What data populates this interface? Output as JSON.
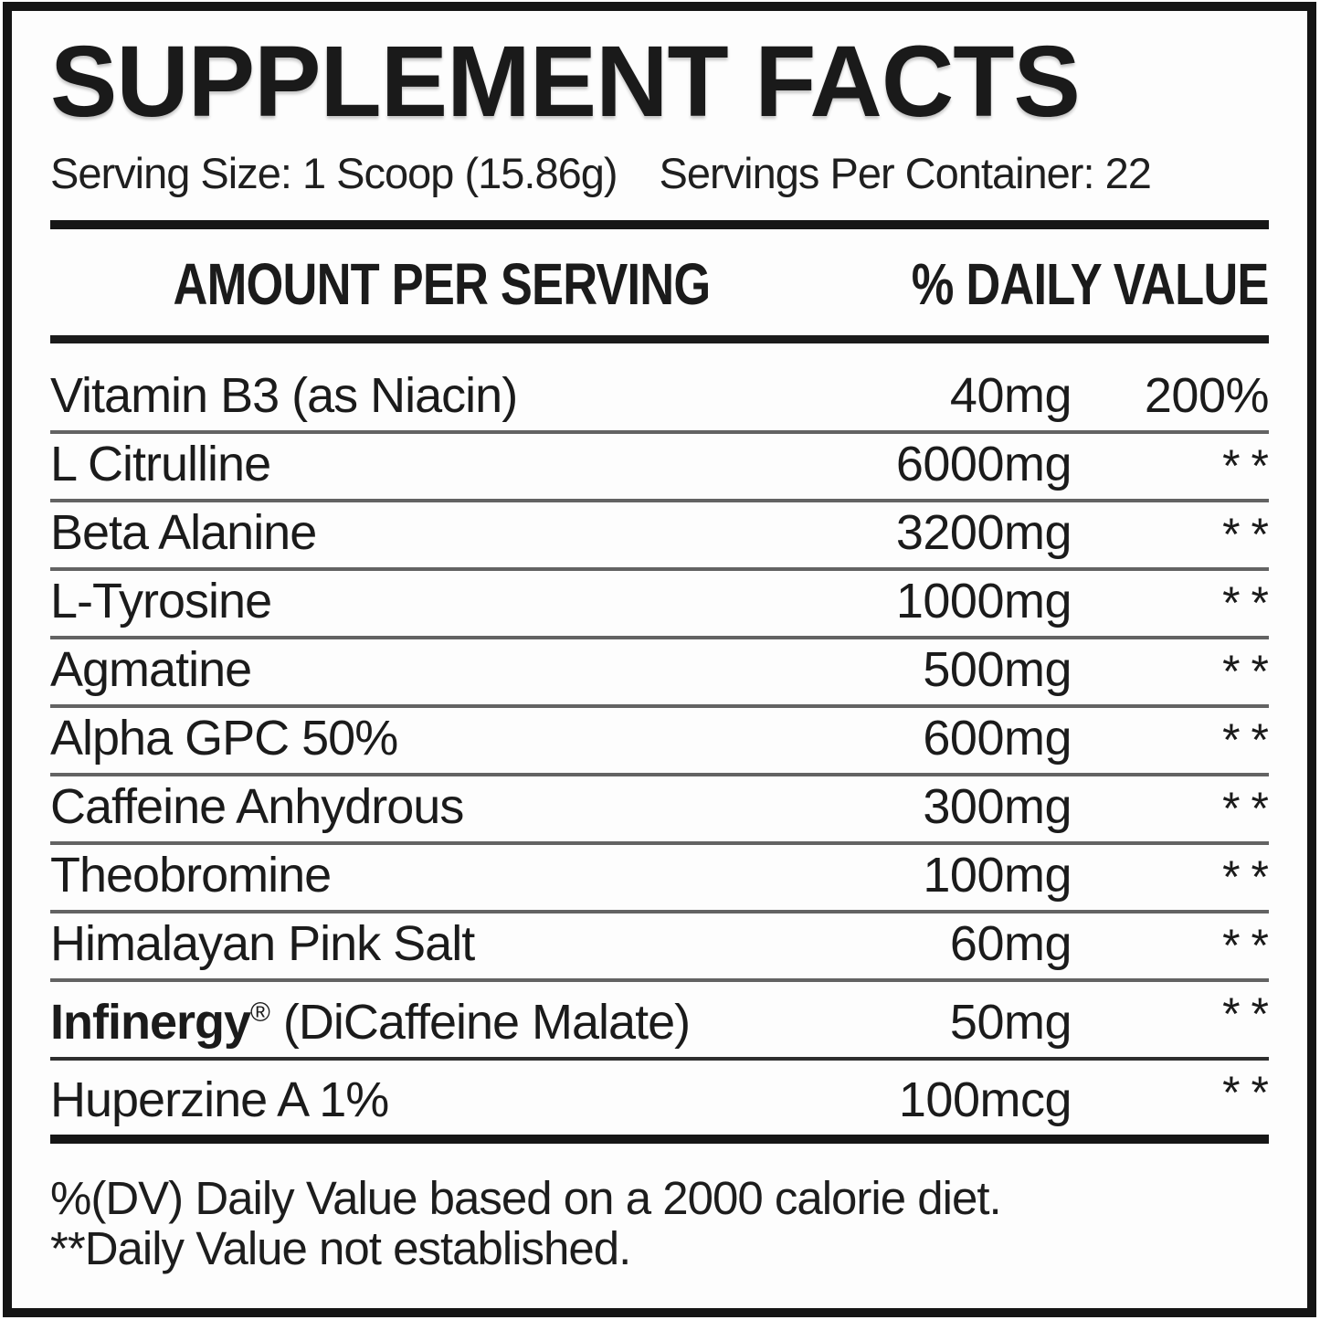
{
  "panel": {
    "title": "SUPPLEMENT FACTS",
    "serving": {
      "size": "Serving Size: 1 Scoop (15.86g)",
      "per_container": "Servings Per Container: 22"
    },
    "columns": {
      "amount": "AMOUNT PER SERVING",
      "daily_value": "% DAILY VALUE"
    },
    "rows": [
      {
        "name": "Vitamin B3 (as Niacin)",
        "amount": "40mg",
        "dv": "200%"
      },
      {
        "name": "L Citrulline",
        "amount": "6000mg",
        "dv": "**"
      },
      {
        "name": "Beta Alanine",
        "amount": "3200mg",
        "dv": "**"
      },
      {
        "name": "L-Tyrosine",
        "amount": "1000mg",
        "dv": "**"
      },
      {
        "name": "Agmatine",
        "amount": "500mg",
        "dv": "**"
      },
      {
        "name": "Alpha GPC 50%",
        "amount": "600mg",
        "dv": "**"
      },
      {
        "name": "Caffeine Anhydrous",
        "amount": "300mg",
        "dv": "**"
      },
      {
        "name": "Theobromine",
        "amount": "100mg",
        "dv": "**"
      },
      {
        "name": "Himalayan Pink Salt",
        "amount": "60mg",
        "dv": "**"
      },
      {
        "name": "Infinergy® (DiCaffeine Malate)",
        "name_parts": [
          {
            "text": "Infinergy",
            "bold": true
          },
          {
            "text": "®",
            "sup": true
          },
          {
            "text": " (DiCaffeine Malate)"
          }
        ],
        "amount": "50mg",
        "dv": "**"
      },
      {
        "name": "Huperzine A 1%",
        "amount": "100mcg",
        "dv": "**"
      }
    ],
    "footnotes": [
      "%(DV) Daily Value based on a 2000 calorie diet.",
      "**Daily Value not established."
    ]
  }
}
